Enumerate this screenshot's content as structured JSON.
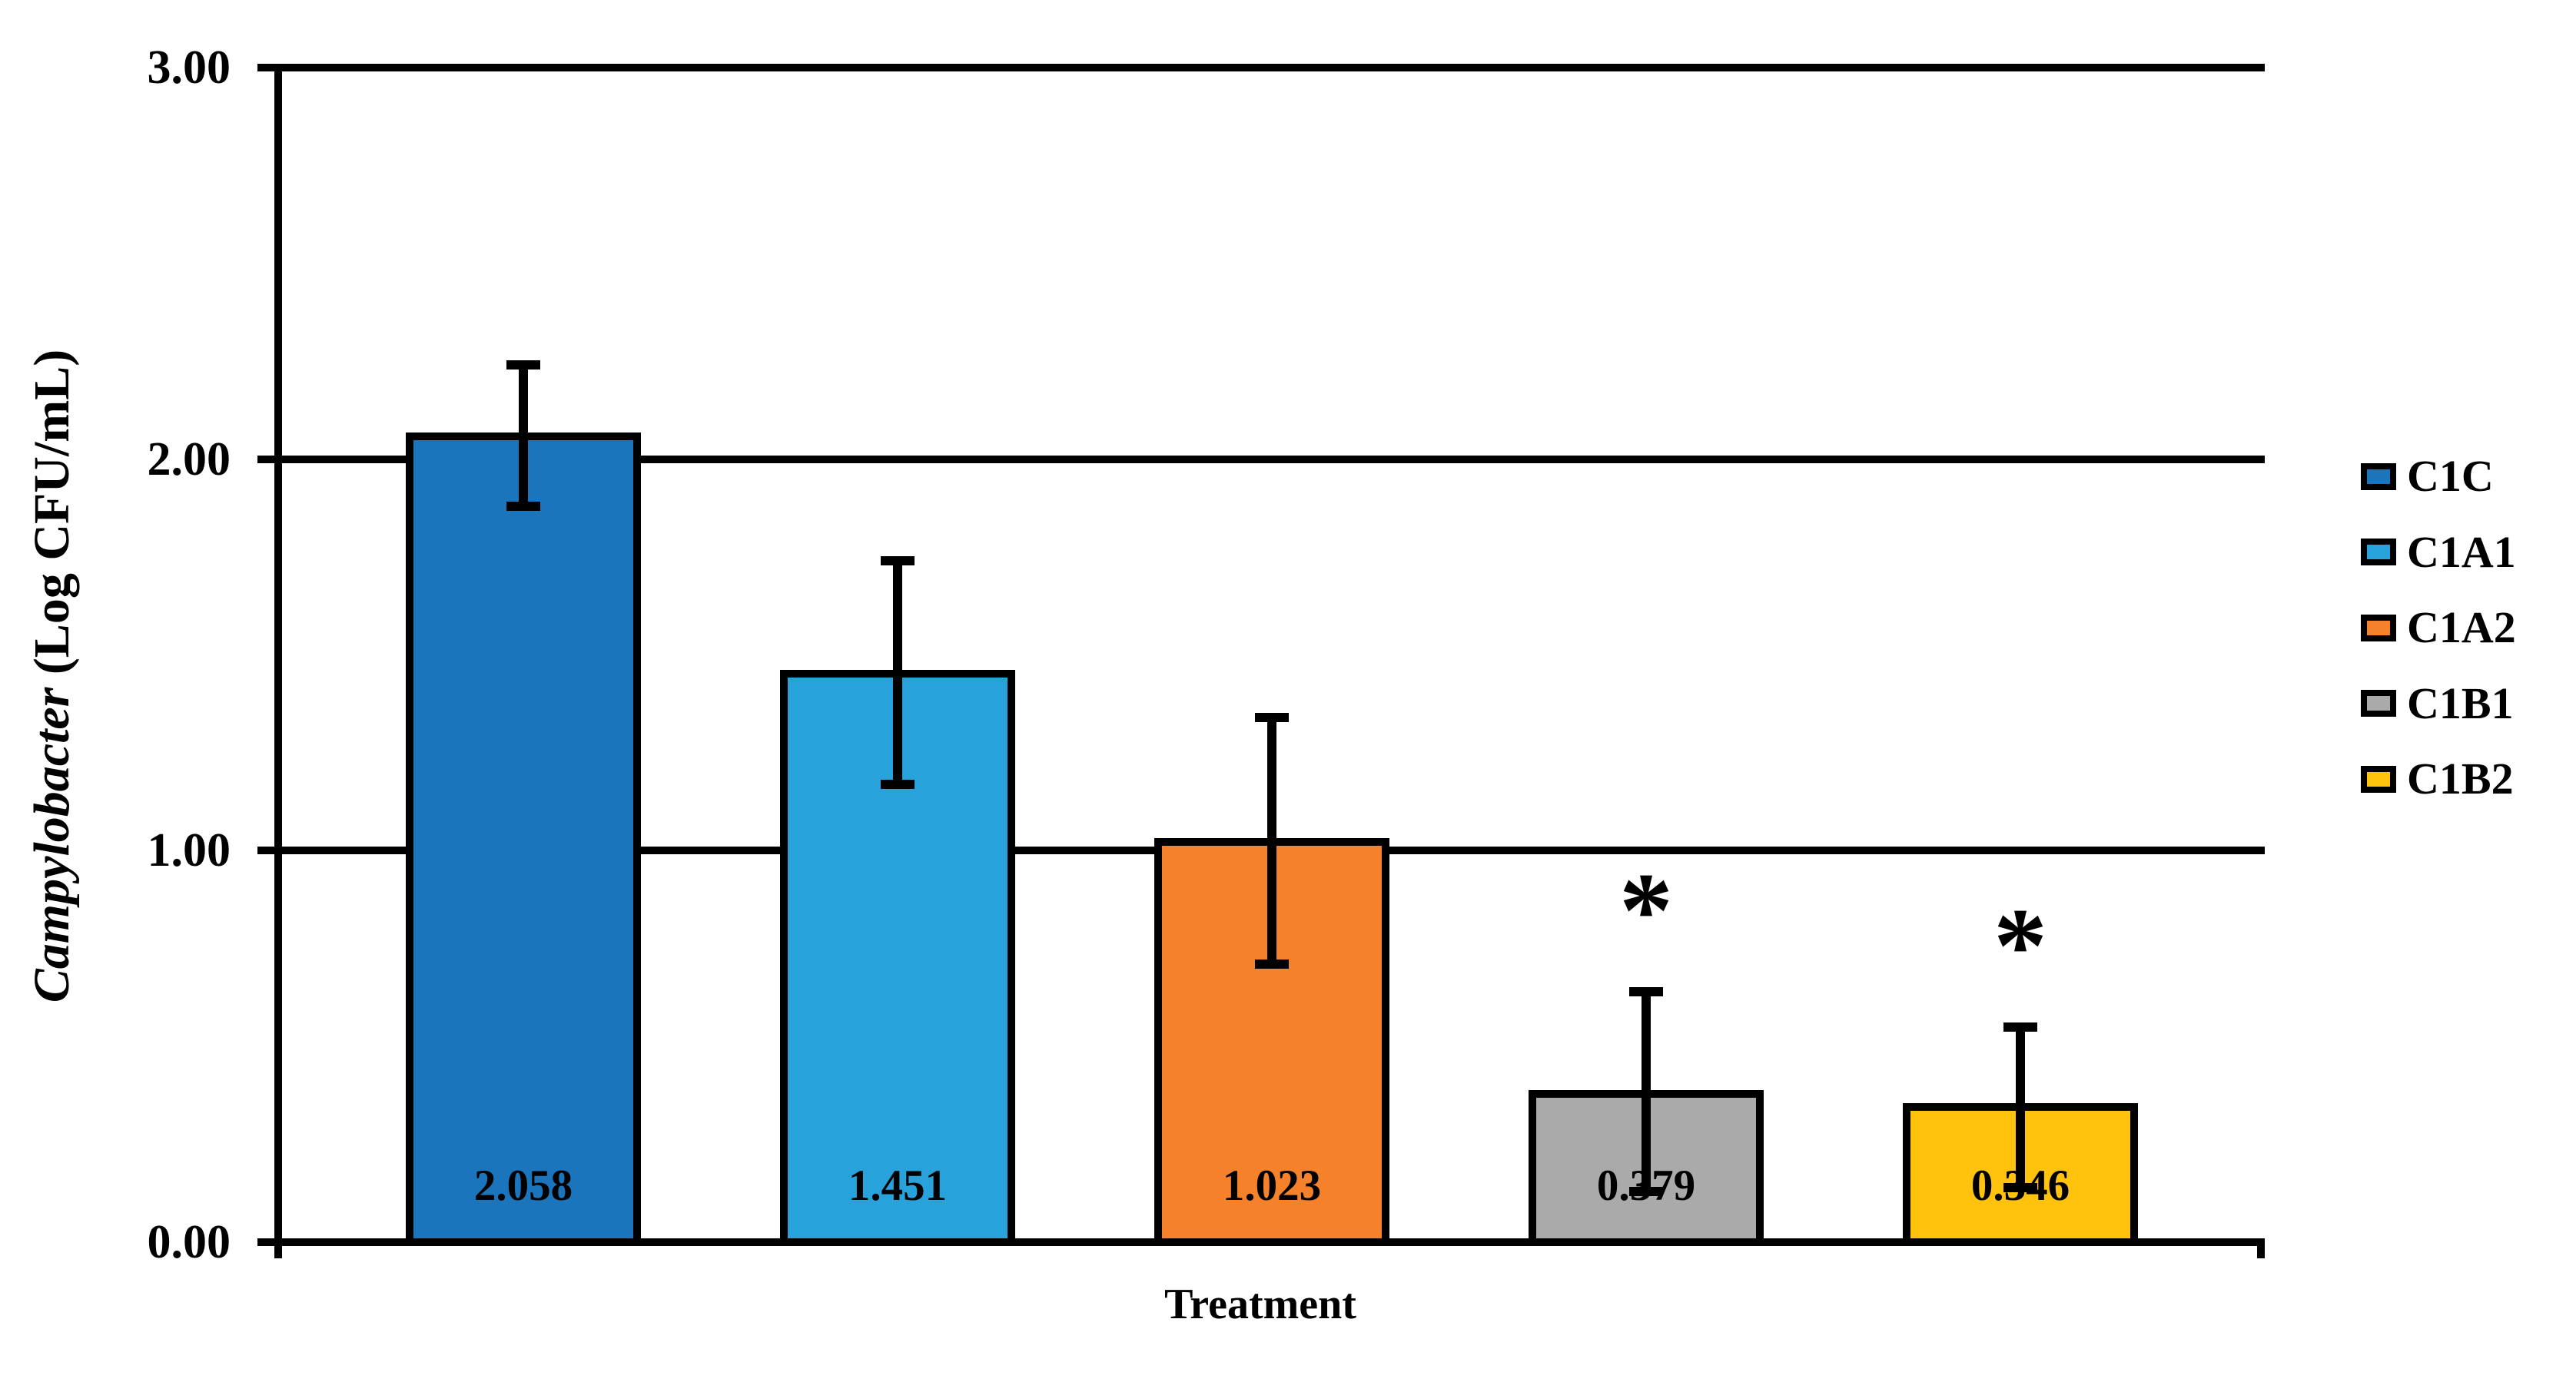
{
  "chart_data": {
    "type": "bar",
    "title": "",
    "xlabel": "Treatment",
    "ylabel_italic": "Campylobacter",
    "ylabel_rest": " (Log CFU/mL)",
    "ylim": [
      0,
      3
    ],
    "grid": true,
    "legend_position": "right",
    "yticks": [
      {
        "label": "3.00",
        "value": 3
      },
      {
        "label": "2.00",
        "value": 2
      },
      {
        "label": "1.00",
        "value": 1
      },
      {
        "label": "0.00",
        "value": 0
      }
    ],
    "categories": [
      "C1C",
      "C1A1",
      "C1A2",
      "C1B1",
      "C1B2"
    ],
    "values": [
      2.058,
      1.451,
      1.023,
      0.379,
      0.346
    ],
    "sig_symbol": "*",
    "bars": [
      {
        "category": "C1C",
        "value": 2.058,
        "label": "2.058",
        "color": "#1B75BC",
        "err_hi": 2.24,
        "err_lo": 1.88,
        "significant": false
      },
      {
        "category": "C1A1",
        "value": 1.451,
        "label": "1.451",
        "color": "#27A2DB",
        "err_hi": 1.74,
        "err_lo": 1.17,
        "significant": false
      },
      {
        "category": "C1A2",
        "value": 1.023,
        "label": "1.023",
        "color": "#F5822A",
        "err_hi": 1.34,
        "err_lo": 0.71,
        "significant": false
      },
      {
        "category": "C1B1",
        "value": 0.379,
        "label": "0.379",
        "color": "#AAAAAA",
        "err_hi": 0.64,
        "err_lo": 0.13,
        "significant": true
      },
      {
        "category": "C1B2",
        "value": 0.346,
        "label": "0.346",
        "color": "#FFC20D",
        "err_hi": 0.55,
        "err_lo": 0.14,
        "significant": true
      }
    ]
  }
}
